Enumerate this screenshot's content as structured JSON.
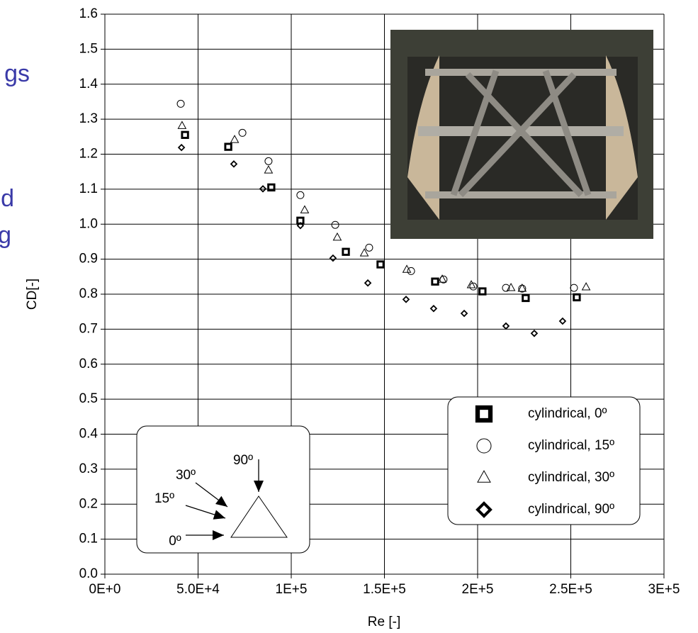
{
  "chart_data": {
    "type": "scatter",
    "xlabel": "Re [-]",
    "ylabel": "CD[-]",
    "xlim": [
      0,
      300000
    ],
    "ylim": [
      0,
      1.6
    ],
    "xticks": [
      {
        "value": 0,
        "label": "0E+0"
      },
      {
        "value": 50000,
        "label": "5.0E+4"
      },
      {
        "value": 100000,
        "label": "1E+5"
      },
      {
        "value": 150000,
        "label": "1.5E+5"
      },
      {
        "value": 200000,
        "label": "2E+5"
      },
      {
        "value": 250000,
        "label": "2.5E+5"
      },
      {
        "value": 300000,
        "label": "3E+5"
      }
    ],
    "yticks": [
      {
        "value": 0,
        "label": "0.0"
      },
      0.1,
      0.2,
      0.3,
      0.4,
      0.5,
      0.6,
      0.7,
      0.8,
      0.9,
      {
        "value": 1,
        "label": "1.0"
      },
      1.1,
      1.2,
      1.3,
      1.4,
      1.5,
      1.6
    ],
    "grid": true,
    "legend": "lower right",
    "series": [
      {
        "name": "cylindrical, 0º",
        "color": "#000000",
        "marker": "square",
        "x": [
          43000,
          66200,
          89300,
          104900,
          129300,
          147900,
          177200,
          202600,
          225800,
          253200
        ],
        "values": [
          1.255,
          1.221,
          1.105,
          1.01,
          0.921,
          0.885,
          0.836,
          0.808,
          0.789,
          0.791
        ]
      },
      {
        "name": "cylindrical, 15º",
        "color": "#000000",
        "marker": "circle",
        "x": [
          40700,
          73800,
          87800,
          104900,
          123600,
          141800,
          164300,
          181700,
          197700,
          215200,
          223900,
          251700
        ],
        "values": [
          1.344,
          1.261,
          1.18,
          1.083,
          0.998,
          0.933,
          0.866,
          0.842,
          0.822,
          0.818,
          0.816,
          0.818
        ]
      },
      {
        "name": "cylindrical, 30º",
        "color": "#000000",
        "marker": "triangle",
        "x": [
          41400,
          69600,
          87800,
          107200,
          124700,
          139200,
          162000,
          181000,
          196600,
          217900,
          223900,
          258200
        ],
        "values": [
          1.281,
          1.241,
          1.154,
          1.04,
          0.962,
          0.917,
          0.87,
          0.842,
          0.826,
          0.818,
          0.816,
          0.82
        ]
      },
      {
        "name": "cylindrical, 90º",
        "color": "#000000",
        "marker": "diamond",
        "x": [
          41100,
          69200,
          84800,
          104900,
          122400,
          141100,
          161600,
          176400,
          192800,
          215200,
          230400,
          245600
        ],
        "values": [
          1.219,
          1.172,
          1.101,
          0.996,
          0.903,
          0.832,
          0.785,
          0.759,
          0.745,
          0.709,
          0.688,
          0.723
        ]
      }
    ],
    "annotations": [
      "90º",
      "30º",
      "15º",
      "0º"
    ],
    "slide_text": [
      "gs",
      "d",
      "g"
    ]
  }
}
